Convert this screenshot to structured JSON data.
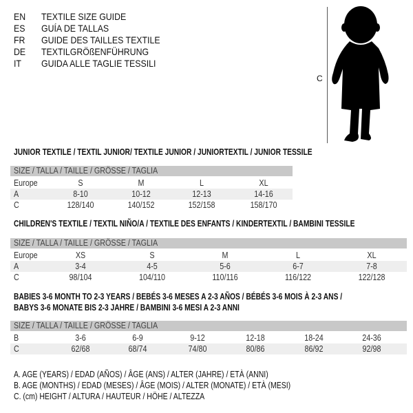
{
  "languages": [
    {
      "code": "EN",
      "name": "TEXTILE SIZE GUIDE"
    },
    {
      "code": "ES",
      "name": "GUÍA DE TALLAS"
    },
    {
      "code": "FR",
      "name": "GUIDE DES TAILLES TEXTILE"
    },
    {
      "code": "DE",
      "name": "TEXTILGRÖßENFÜHRUNG"
    },
    {
      "code": "IT",
      "name": "GUIDA ALLE TAGLIE TESSILI"
    }
  ],
  "figure": {
    "measure_label": "C",
    "icon": "child-silhouette"
  },
  "tables": [
    {
      "title_lines": [
        "JUNIOR TEXTILE / TEXTIL JUNIOR/ TEXTILE JUNIOR / JUNIORTEXTIL / JUNIOR TESSILE"
      ],
      "header": "SIZE / TALLA / TAILLE / GRÖSSE / TAGLIA",
      "rows": [
        {
          "label": "Europe",
          "cells": [
            "S",
            "M",
            "L",
            "XL"
          ]
        },
        {
          "label": "A",
          "cells": [
            "8-10",
            "10-12",
            "12-13",
            "14-16"
          ]
        },
        {
          "label": "C",
          "cells": [
            "128/140",
            "140/152",
            "152/158",
            "158/170"
          ]
        }
      ]
    },
    {
      "title_lines": [
        "CHILDREN'S TEXTILE / TEXTIL NIÑO/A / TEXTILE DES ENFANTS / KINDERTEXTIL / BAMBINI TESSILE"
      ],
      "header": "SIZE / TALLA / TAILLE / GRÖSSE / TAGLIA",
      "rows": [
        {
          "label": "Europe",
          "cells": [
            "XS",
            "S",
            "M",
            "L",
            "XL"
          ]
        },
        {
          "label": "A",
          "cells": [
            "3-4",
            "4-5",
            "5-6",
            "6-7",
            "7-8"
          ]
        },
        {
          "label": "C",
          "cells": [
            "98/104",
            "104/110",
            "110/116",
            "116/122",
            "122/128"
          ]
        }
      ]
    },
    {
      "title_lines": [
        "BABIES 3-6 MONTH TO 2-3 YEARS / BEBÉS 3-6 MESES A 2-3 AÑOS / BÉBÉS 3-6 MOIS À 2-3 ANS /",
        "BABYS 3-6 MONATE BIS 2-3 JAHRE / BAMBINI 3-6 MESI A 2-3 ANNI"
      ],
      "header": "SIZE / TALLA / TAILLE / GRÖSSE / TAGLIA",
      "rows": [
        {
          "label": "B",
          "cells": [
            "3-6",
            "6-9",
            "9-12",
            "12-18",
            "18-24",
            "24-36"
          ]
        },
        {
          "label": "C",
          "cells": [
            "62/68",
            "68/74",
            "74/80",
            "80/86",
            "86/92",
            "92/98"
          ]
        }
      ]
    }
  ],
  "legend": [
    "A. AGE (YEARS) / EDAD (AÑOS) / ÂGE (ANS) / ALTER (JAHRE) / ETÀ (ANNI)",
    "B. AGE (MONTHS) / EDAD (MESES) / ÂGE (MOIS) / ALTER (MONATE) / ETÀ (MESI)",
    "C. (cm) HEIGHT / ALTURA / HAUTEUR / HÖHE / ALTEZZA"
  ]
}
